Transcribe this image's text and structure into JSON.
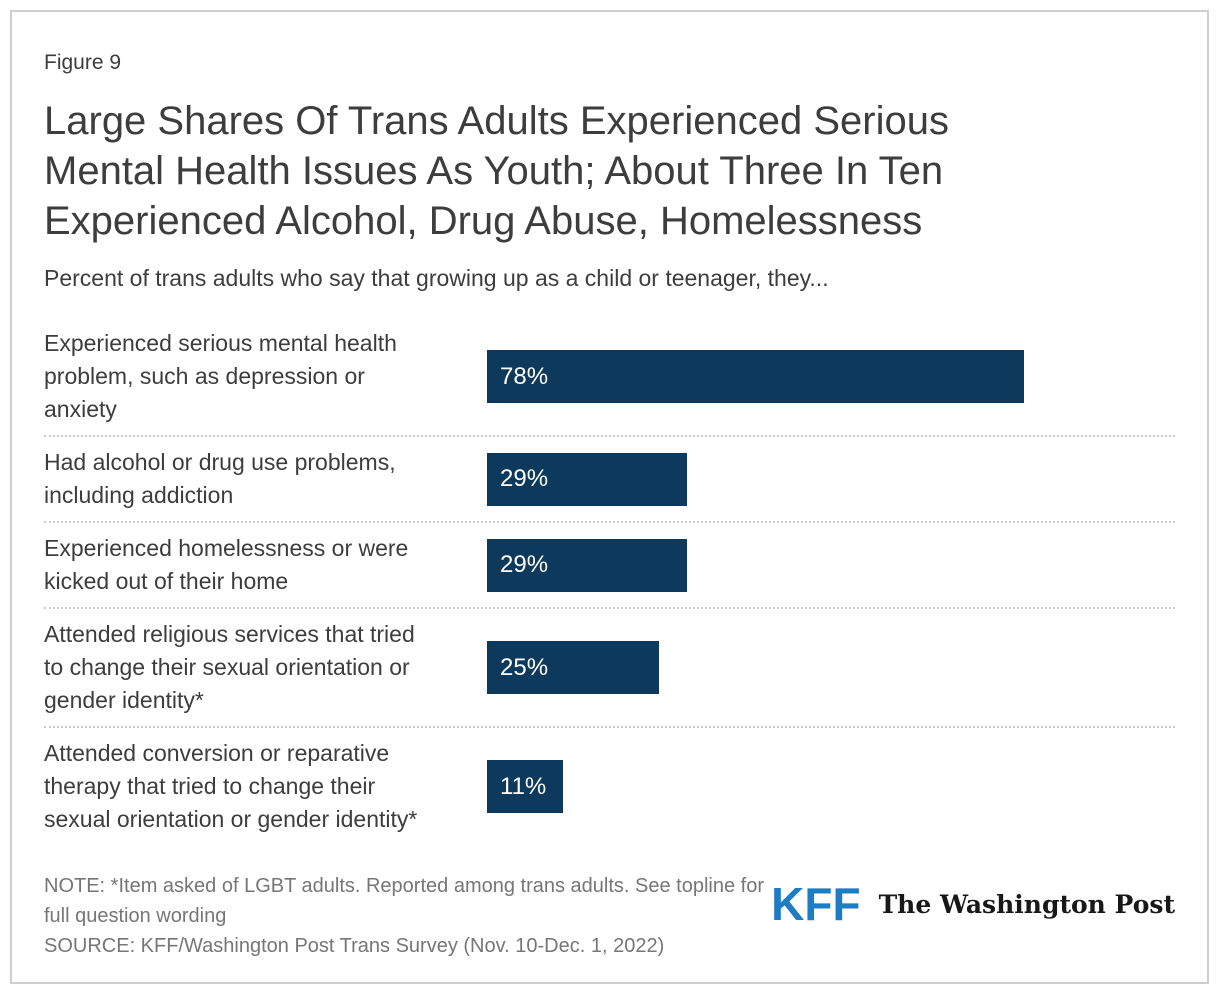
{
  "card": {
    "figure_label": "Figure 9",
    "title_lines": [
      "Large Shares Of Trans Adults Experienced Serious",
      "Mental Health Issues As Youth; About Three In Ten",
      "Experienced Alcohol, Drug Abuse, Homelessness"
    ],
    "subtitle": "Percent of trans adults who say that growing up as a child or teenager, they..."
  },
  "chart_data": {
    "type": "bar",
    "orientation": "horizontal",
    "title": "Large Shares Of Trans Adults Experienced Serious Mental Health Issues As Youth; About Three In Ten Experienced Alcohol, Drug Abuse, Homelessness",
    "subtitle": "Percent of trans adults who say that growing up as a child or teenager, they...",
    "categories": [
      "Experienced serious mental health problem, such as depression or anxiety",
      "Had alcohol or drug use problems, including addiction",
      "Experienced homelessness or were kicked out of their home",
      "Attended religious services that tried to change their sexual orientation or gender identity*",
      "Attended conversion or reparative therapy that tried to change their sexual orientation or gender identity*"
    ],
    "values": [
      78,
      29,
      29,
      25,
      11
    ],
    "value_labels": [
      "78%",
      "29%",
      "29%",
      "25%",
      "11%"
    ],
    "xlim": [
      0,
      100
    ],
    "grid": "off",
    "legend": "none",
    "bar_color": "#0d3a5c",
    "value_label_position": "inside-left",
    "value_label_color": "#ffffff"
  },
  "footer": {
    "note_line1": "NOTE: *Item asked of LGBT adults. Reported among trans adults. See topline for",
    "note_line2": "full question wording",
    "source": "SOURCE: KFF/Washington Post Trans Survey (Nov. 10-Dec. 1, 2022)",
    "kff_logo_text": "KFF",
    "wapo_logo_text": "The Washington Post"
  },
  "colors": {
    "bar": "#0d3a5c",
    "kff_blue": "#1d7dc2",
    "text_dark": "#3d3d3d",
    "text_muted": "#767676",
    "divider": "#cccccc",
    "border": "#cfcfcf"
  }
}
